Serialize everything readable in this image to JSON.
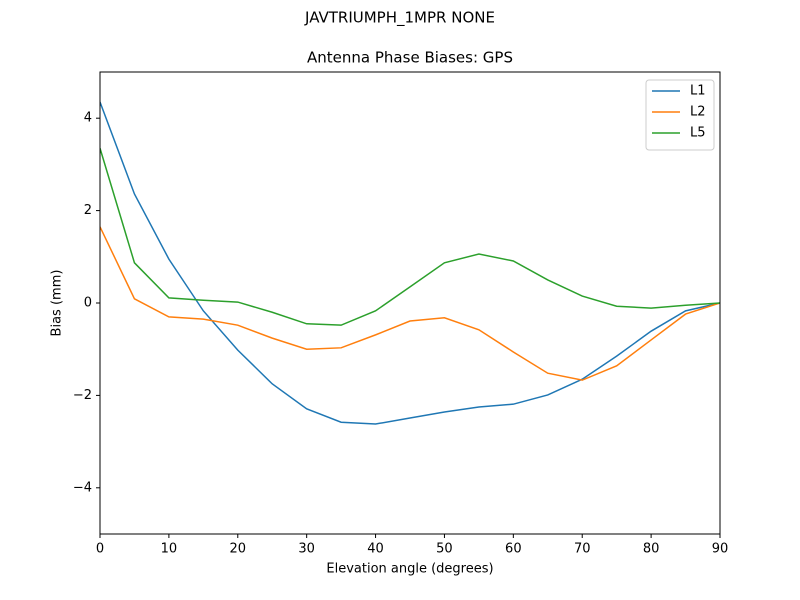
{
  "chart_data": {
    "type": "line",
    "suptitle": "JAVTRIUMPH_1MPR NONE",
    "title": "Antenna Phase Biases: GPS",
    "x_label": "Elevation angle (degrees)",
    "y_label": "Bias (mm)",
    "x": [
      0,
      5,
      10,
      15,
      20,
      25,
      30,
      35,
      40,
      45,
      50,
      55,
      60,
      65,
      70,
      75,
      80,
      85,
      90
    ],
    "series": [
      {
        "name": "L1",
        "color": "#1f77b4",
        "values": [
          4.35,
          2.36,
          0.95,
          -0.17,
          -1.02,
          -1.75,
          -2.29,
          -2.58,
          -2.62,
          -2.49,
          -2.36,
          -2.25,
          -2.19,
          -1.99,
          -1.65,
          -1.15,
          -0.61,
          -0.17,
          0
        ]
      },
      {
        "name": "L2",
        "color": "#ff7f0e",
        "values": [
          1.65,
          0.09,
          -0.3,
          -0.35,
          -0.48,
          -0.76,
          -1.0,
          -0.97,
          -0.69,
          -0.39,
          -0.32,
          -0.58,
          -1.06,
          -1.52,
          -1.67,
          -1.36,
          -0.8,
          -0.24,
          0
        ]
      },
      {
        "name": "L5",
        "color": "#2ca02c",
        "values": [
          3.35,
          0.87,
          0.11,
          0.06,
          0.02,
          -0.2,
          -0.45,
          -0.48,
          -0.17,
          0.35,
          0.87,
          1.06,
          0.91,
          0.5,
          0.15,
          -0.07,
          -0.11,
          -0.05,
          0
        ]
      }
    ],
    "xlim": [
      0,
      90
    ],
    "xticks": [
      0,
      10,
      20,
      30,
      40,
      50,
      60,
      70,
      80,
      90
    ],
    "ylim": [
      -5,
      5
    ],
    "yticks": [
      {
        "value": -4,
        "label": "−4"
      },
      {
        "value": -2,
        "label": "−2"
      },
      0,
      2,
      4
    ],
    "legend": "upper right"
  }
}
